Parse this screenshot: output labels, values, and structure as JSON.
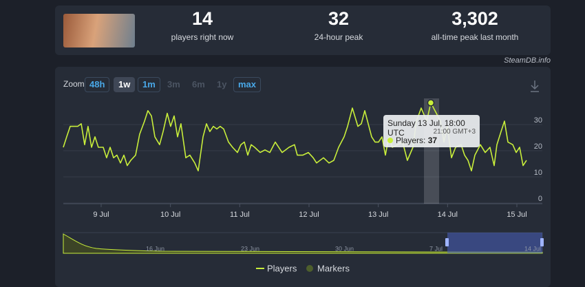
{
  "header": {
    "stats": [
      {
        "value": "14",
        "label": "players right now"
      },
      {
        "value": "32",
        "label": "24-hour peak"
      },
      {
        "value": "3,302",
        "label": "all-time peak last month"
      }
    ],
    "credit": "SteamDB.info"
  },
  "zoom": {
    "label": "Zoom",
    "options": [
      "48h",
      "1w",
      "1m",
      "3m",
      "6m",
      "1y",
      "max"
    ]
  },
  "tooltip": {
    "title": "Sunday 13 Jul, 18:00 UTC",
    "subtitle": "21:00 GMT+3",
    "label": "Players:"
  },
  "navigator": {
    "labels": [
      "16 Jun",
      "23 Jun",
      "30 Jun",
      "7 Jul",
      "14 Jul"
    ]
  },
  "chart_data": {
    "type": "line",
    "x": [
      8.454,
      8.503,
      8.553,
      8.613,
      8.662,
      8.712,
      8.762,
      8.811,
      8.861,
      8.911,
      8.96,
      9.03,
      9.079,
      9.129,
      9.179,
      9.228,
      9.278,
      9.328,
      9.377,
      9.427,
      9.497,
      9.556,
      9.626,
      9.675,
      9.725,
      9.775,
      9.844,
      9.894,
      9.954,
      10.003,
      10.053,
      10.103,
      10.152,
      10.222,
      10.281,
      10.351,
      10.401,
      10.47,
      10.52,
      10.569,
      10.619,
      10.669,
      10.718,
      10.768,
      10.838,
      10.897,
      10.967,
      11.017,
      11.066,
      11.116,
      11.166,
      11.215,
      11.295,
      11.364,
      11.434,
      11.513,
      11.612,
      11.712,
      11.791,
      11.831,
      11.911,
      11.99,
      12.06,
      12.109,
      12.209,
      12.288,
      12.358,
      12.427,
      12.507,
      12.556,
      12.626,
      12.705,
      12.755,
      12.805,
      12.854,
      12.904,
      12.954,
      13.003,
      13.053,
      13.103,
      13.152,
      13.202,
      13.281,
      13.351,
      13.42,
      13.5,
      13.55,
      13.619,
      13.699,
      13.758,
      13.818,
      13.897,
      13.947,
      13.997,
      14.056,
      14.116,
      14.195,
      14.245,
      14.295,
      14.344,
      14.394,
      14.473,
      14.543,
      14.612,
      14.672,
      14.712,
      14.771,
      14.821,
      14.871,
      14.94,
      14.99,
      15.04,
      15.089,
      15.139
    ],
    "series": [
      {
        "name": "Players",
        "color": "#c9ef3b",
        "values": [
          20,
          24,
          28,
          28,
          28,
          29,
          21,
          28,
          20,
          24,
          20,
          20,
          16,
          20,
          16,
          17,
          14,
          17,
          13,
          15,
          17,
          25,
          30,
          34,
          32,
          24,
          21,
          26,
          33,
          28,
          32,
          24,
          29,
          16,
          17,
          14,
          11,
          24,
          29,
          26,
          28,
          27,
          28,
          27,
          22,
          20,
          18,
          21,
          22,
          17,
          21,
          20,
          18,
          19,
          18,
          22,
          18,
          20,
          21,
          17,
          17,
          18,
          16,
          14,
          16,
          14,
          15,
          20,
          24,
          28,
          35,
          28,
          29,
          34,
          29,
          24,
          22,
          22,
          24,
          17,
          24,
          20,
          21,
          22,
          15,
          20,
          30,
          35,
          30,
          37,
          34,
          30,
          22,
          28,
          16,
          20,
          21,
          17,
          15,
          11,
          17,
          21,
          18,
          20,
          13,
          21,
          26,
          30,
          22,
          21,
          18,
          20,
          13,
          15
        ]
      }
    ],
    "markers": {
      "name": "Markers",
      "color": "#4d5e2c"
    },
    "xlim": [
      8.454,
      15.139
    ],
    "ylim": [
      0,
      40
    ],
    "xticks": [
      {
        "value": 9,
        "label": "9 Jul"
      },
      {
        "value": 10,
        "label": "10 Jul"
      },
      {
        "value": 11,
        "label": "11 Jul"
      },
      {
        "value": 12,
        "label": "12 Jul"
      },
      {
        "value": 13,
        "label": "13 Jul"
      },
      {
        "value": 14,
        "label": "14 Jul"
      },
      {
        "value": 15,
        "label": "15 Jul"
      }
    ],
    "yticks": [
      0,
      10,
      20,
      30
    ],
    "grid": true
  }
}
